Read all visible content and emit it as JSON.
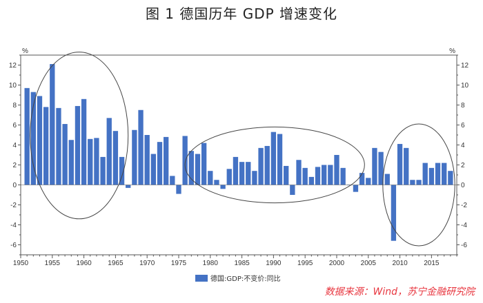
{
  "title": "图 1 德国历年 GDP 增速变化",
  "source": "数据来源：Wind，苏宁金融研究院",
  "colors": {
    "bar": "#4472C4",
    "axis": "#555555",
    "ellipse": "#444444"
  },
  "chart_data": {
    "type": "bar",
    "title": "图 1 德国历年 GDP 增速变化",
    "ylabel_left": "%",
    "ylabel_right": "%",
    "ylim": [
      -7,
      13
    ],
    "yticks": [
      -6,
      -4,
      -2,
      0,
      2,
      4,
      6,
      8,
      10,
      12
    ],
    "xlim": [
      1950,
      2019
    ],
    "xticks": [
      1950,
      1955,
      1960,
      1965,
      1970,
      1975,
      1980,
      1985,
      1990,
      1995,
      2000,
      2005,
      2010,
      2015
    ],
    "legend": "德国:GDP:不变价:同比",
    "series": [
      {
        "name": "德国:GDP:不变价:同比",
        "years": [
          1951,
          1952,
          1953,
          1954,
          1955,
          1956,
          1957,
          1958,
          1959,
          1960,
          1961,
          1962,
          1963,
          1964,
          1965,
          1966,
          1967,
          1968,
          1969,
          1970,
          1971,
          1972,
          1973,
          1974,
          1975,
          1976,
          1977,
          1978,
          1979,
          1980,
          1981,
          1982,
          1983,
          1984,
          1985,
          1986,
          1987,
          1988,
          1989,
          1990,
          1991,
          1992,
          1993,
          1994,
          1995,
          1996,
          1997,
          1998,
          1999,
          2000,
          2001,
          2002,
          2003,
          2004,
          2005,
          2006,
          2007,
          2008,
          2009,
          2010,
          2011,
          2012,
          2013,
          2014,
          2015,
          2016,
          2017,
          2018
        ],
        "values": [
          9.7,
          9.3,
          8.9,
          7.8,
          12.1,
          7.7,
          6.1,
          4.5,
          7.9,
          8.6,
          4.6,
          4.7,
          2.8,
          6.7,
          5.4,
          2.8,
          -0.3,
          5.5,
          7.5,
          5.0,
          3.1,
          4.3,
          4.8,
          0.9,
          -0.9,
          4.9,
          3.4,
          3.1,
          4.2,
          1.4,
          0.5,
          -0.4,
          1.6,
          2.8,
          2.3,
          2.3,
          1.4,
          3.7,
          3.9,
          5.3,
          5.1,
          1.9,
          -1.0,
          2.5,
          1.7,
          0.8,
          1.8,
          2.0,
          2.0,
          3.0,
          1.7,
          0.0,
          -0.7,
          1.2,
          0.7,
          3.7,
          3.3,
          1.1,
          -5.6,
          4.1,
          3.7,
          0.5,
          0.5,
          2.2,
          1.7,
          2.2,
          2.2,
          1.4
        ]
      }
    ]
  }
}
